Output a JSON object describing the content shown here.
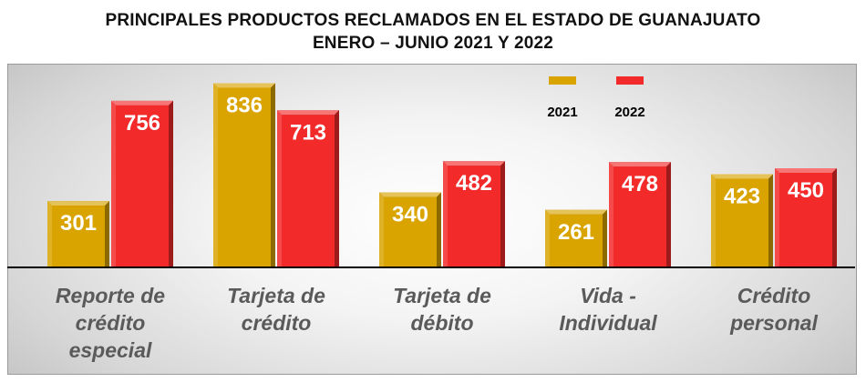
{
  "chart_data": {
    "type": "bar",
    "title": "PRINCIPALES PRODUCTOS RECLAMADOS EN EL ESTADO DE GUANAJUATO",
    "subtitle": "ENERO – JUNIO 2021 Y 2022",
    "categories": [
      [
        "Reporte de",
        "crédito",
        "especial"
      ],
      [
        "Tarjeta de",
        "crédito"
      ],
      [
        "Tarjeta de",
        "débito"
      ],
      [
        "Vida -",
        "Individual"
      ],
      [
        "Crédito",
        "personal"
      ]
    ],
    "series": [
      {
        "name": "2021",
        "values": [
          301,
          836,
          340,
          261,
          423
        ],
        "color": "#d9a300"
      },
      {
        "name": "2022",
        "values": [
          756,
          713,
          482,
          478,
          450
        ],
        "color": "#f22a2a"
      }
    ],
    "ylim": [
      0,
      900
    ],
    "legend": "top-right",
    "grid": false
  }
}
